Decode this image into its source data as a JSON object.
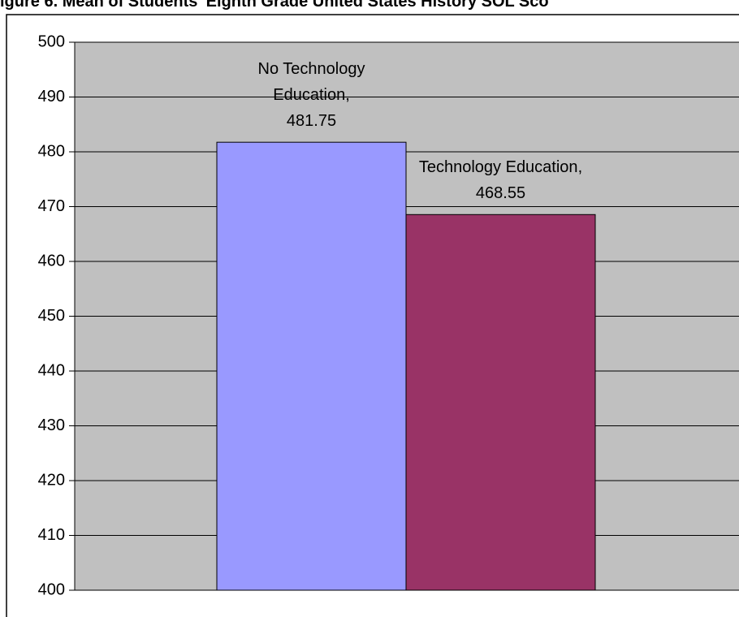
{
  "chart_data": {
    "type": "bar",
    "title": "igure 6. Mean of Students' Eighth Grade United States History SOL Sco",
    "categories": [
      null
    ],
    "series": [
      {
        "name": "No Technology Education",
        "color": "#9999ff",
        "values": [
          481.75
        ]
      },
      {
        "name": "Technology Education",
        "color": "#993366",
        "values": [
          468.55
        ]
      }
    ],
    "ylim": [
      400,
      500
    ],
    "yticks": [
      400,
      410,
      420,
      430,
      440,
      450,
      460,
      470,
      480,
      490,
      500
    ],
    "grid": true
  }
}
